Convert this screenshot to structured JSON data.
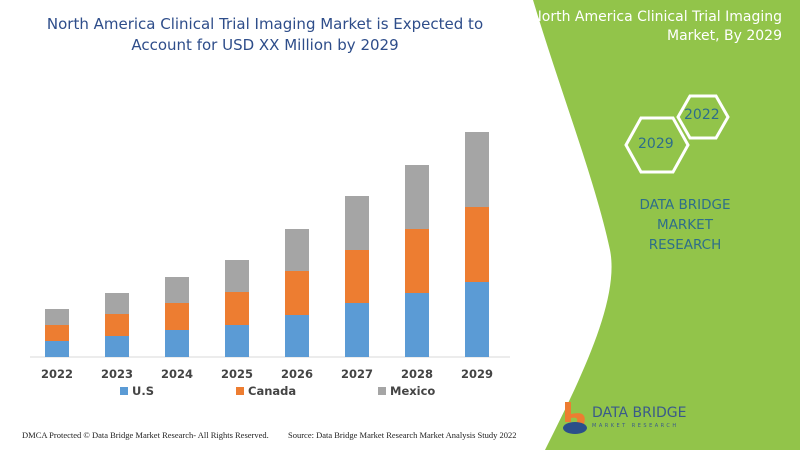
{
  "header": {
    "title_line1": "North America Clinical Trial Imaging Market is Expected to",
    "title_line2": "Account for USD XX Million by 2029"
  },
  "side_panel": {
    "title_line1": "North America Clinical Trial Imaging",
    "title_line2": "Market, By 2029",
    "hex_years": [
      "2022",
      "2029"
    ],
    "brand_line1": "DATA BRIDGE MARKET",
    "brand_line2": "RESEARCH",
    "logo_text": "DATA BRIDGE",
    "logo_sub": "MARKET RESEARCH",
    "color": "#92c44a"
  },
  "footer": {
    "left": "DMCA Protected © Data Bridge Market Research- All Rights Reserved.",
    "right": "Source: Data Bridge Market Research Market Analysis Study 2022"
  },
  "chart_data": {
    "type": "bar",
    "stacked": true,
    "categories": [
      "2022",
      "2023",
      "2024",
      "2025",
      "2026",
      "2027",
      "2028",
      "2029"
    ],
    "series": [
      {
        "name": "U.S",
        "color": "#5b9bd5",
        "values": [
          16,
          21,
          27,
          32,
          42,
          54,
          64,
          75
        ]
      },
      {
        "name": "Canada",
        "color": "#ed7d31",
        "values": [
          16,
          22,
          27,
          33,
          44,
          53,
          64,
          75
        ]
      },
      {
        "name": "Mexico",
        "color": "#a5a5a5",
        "values": [
          16,
          21,
          26,
          32,
          42,
          54,
          64,
          75
        ]
      }
    ],
    "ylim": [
      0,
      225
    ],
    "yaxis_shown": false,
    "grid": false,
    "legend": "bottom"
  }
}
